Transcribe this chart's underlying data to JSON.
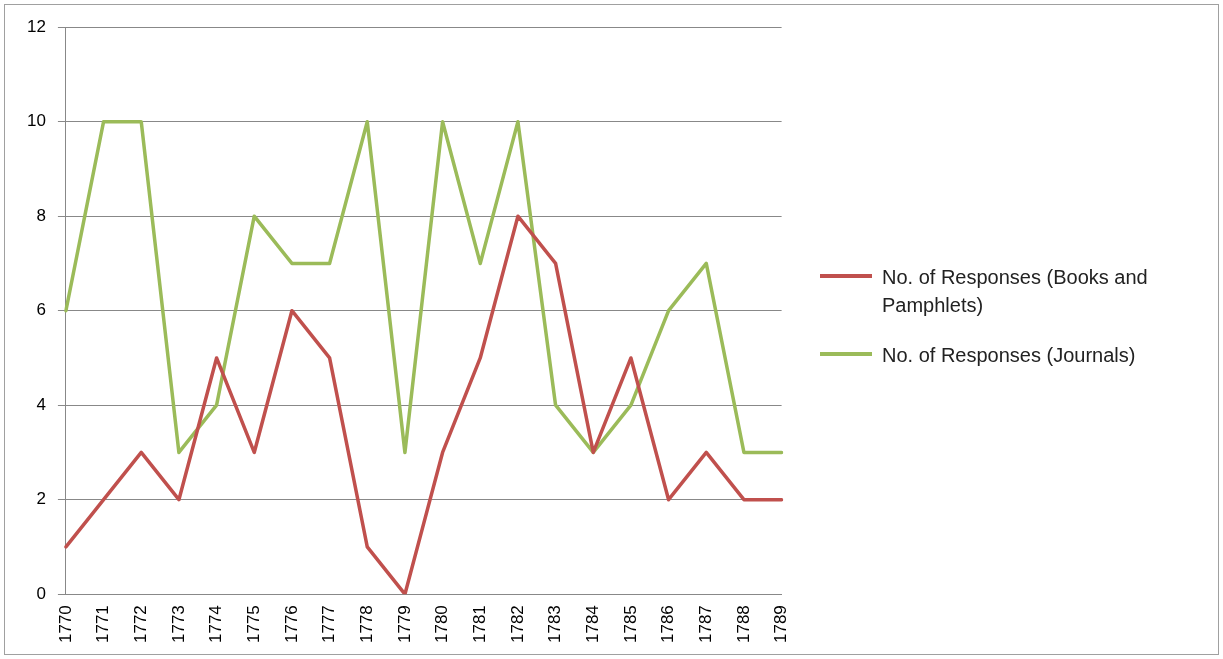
{
  "chart_data": {
    "type": "line",
    "categories": [
      "1770",
      "1771",
      "1772",
      "1773",
      "1774",
      "1775",
      "1776",
      "1777",
      "1778",
      "1779",
      "1780",
      "1781",
      "1782",
      "1783",
      "1784",
      "1785",
      "1786",
      "1787",
      "1788",
      "1789"
    ],
    "series": [
      {
        "name": "No. of Responses (Books and Pamphlets)",
        "color": "#c0504d",
        "values": [
          1,
          2,
          3,
          2,
          5,
          3,
          6,
          5,
          1,
          0,
          3,
          5,
          8,
          7,
          3,
          5,
          2,
          3,
          2,
          2
        ]
      },
      {
        "name": "No. of Responses (Journals)",
        "color": "#9bbb59",
        "values": [
          6,
          10,
          10,
          3,
          4,
          8,
          7,
          7,
          10,
          3,
          10,
          7,
          10,
          4,
          3,
          4,
          6,
          7,
          3,
          3
        ]
      }
    ],
    "ylim": [
      0,
      12
    ],
    "yticks": [
      0,
      2,
      4,
      6,
      8,
      10,
      12
    ],
    "grid": "y",
    "legend": "right",
    "marker": "none",
    "line_style": "solid"
  }
}
